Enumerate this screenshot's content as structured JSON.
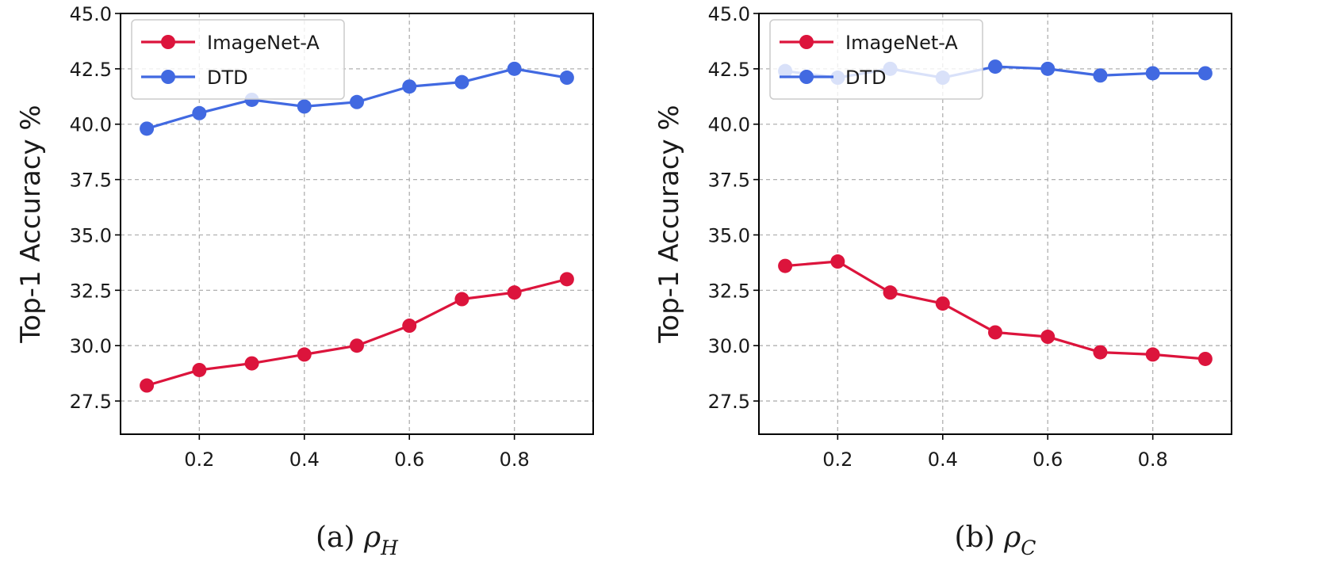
{
  "chart_data": [
    {
      "type": "line",
      "caption": {
        "prefix": "(a) ",
        "symbol": "ρ",
        "subscript": "H"
      },
      "ylabel": "Top-1 Accuracy %",
      "xlabel": "",
      "xlim": [
        0.05,
        0.95
      ],
      "ylim": [
        26.0,
        45.0
      ],
      "xticks": [
        "0.2",
        "0.4",
        "0.6",
        "0.8"
      ],
      "xtick_values": [
        0.2,
        0.4,
        0.6,
        0.8
      ],
      "yticks": [
        "27.5",
        "30.0",
        "32.5",
        "35.0",
        "37.5",
        "40.0",
        "42.5",
        "45.0"
      ],
      "ytick_values": [
        27.5,
        30.0,
        32.5,
        35.0,
        37.5,
        40.0,
        42.5,
        45.0
      ],
      "grid": true,
      "legend_position": "top-left",
      "x": [
        0.1,
        0.2,
        0.3,
        0.4,
        0.5,
        0.6,
        0.7,
        0.8,
        0.9
      ],
      "series": [
        {
          "name": "ImageNet-A",
          "color": "#dc143c",
          "values": [
            28.2,
            28.9,
            29.2,
            29.6,
            30.0,
            30.9,
            32.1,
            32.4,
            33.0
          ]
        },
        {
          "name": "DTD",
          "color": "#4169e1",
          "values": [
            39.8,
            40.5,
            41.1,
            40.8,
            41.0,
            41.7,
            41.9,
            42.5,
            42.1
          ]
        }
      ]
    },
    {
      "type": "line",
      "caption": {
        "prefix": "(b) ",
        "symbol": "ρ",
        "subscript": "C"
      },
      "ylabel": "Top-1 Accuracy %",
      "xlabel": "",
      "xlim": [
        0.05,
        0.95
      ],
      "ylim": [
        26.0,
        45.0
      ],
      "xticks": [
        "0.2",
        "0.4",
        "0.6",
        "0.8"
      ],
      "xtick_values": [
        0.2,
        0.4,
        0.6,
        0.8
      ],
      "yticks": [
        "27.5",
        "30.0",
        "32.5",
        "35.0",
        "37.5",
        "40.0",
        "42.5",
        "45.0"
      ],
      "ytick_values": [
        27.5,
        30.0,
        32.5,
        35.0,
        37.5,
        40.0,
        42.5,
        45.0
      ],
      "grid": true,
      "legend_position": "top-left",
      "x": [
        0.1,
        0.2,
        0.3,
        0.4,
        0.5,
        0.6,
        0.7,
        0.8,
        0.9
      ],
      "series": [
        {
          "name": "ImageNet-A",
          "color": "#dc143c",
          "values": [
            33.6,
            33.8,
            32.4,
            31.9,
            30.6,
            30.4,
            29.7,
            29.6,
            29.4
          ]
        },
        {
          "name": "DTD",
          "color": "#4169e1",
          "values": [
            42.4,
            42.1,
            42.5,
            42.1,
            42.6,
            42.5,
            42.2,
            42.3,
            42.3
          ]
        }
      ]
    }
  ]
}
